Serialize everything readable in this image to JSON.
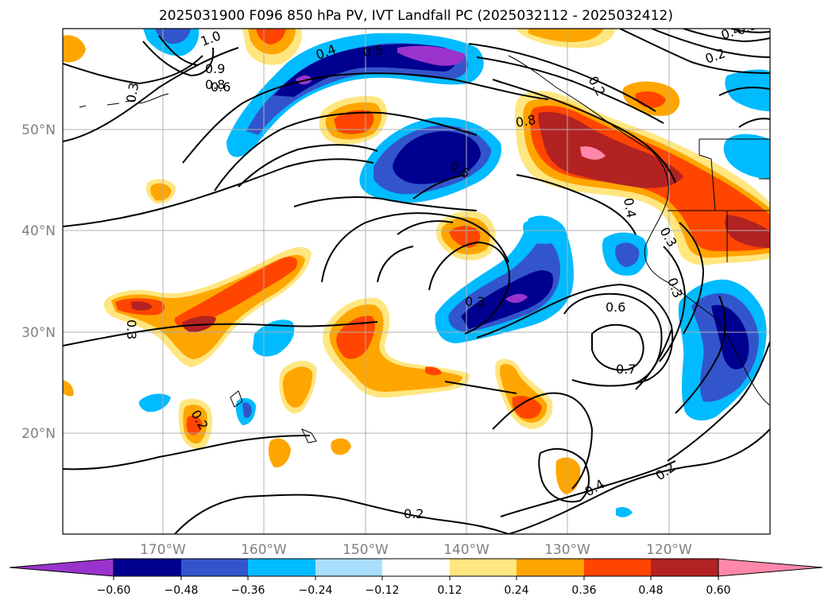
{
  "title": "2025031900 F096 850 hPa PV, IVT Landfall PC (2025032112 - 2025032412)",
  "lon_ticks": [
    "170°W",
    "160°W",
    "150°W",
    "140°W",
    "130°W",
    "120°W"
  ],
  "lat_ticks": [
    "50°N",
    "40°N",
    "30°N",
    "20°N"
  ],
  "colorbar": {
    "tick_labels": [
      "−0.60",
      "−0.48",
      "−0.36",
      "−0.24",
      "−0.12",
      "0.12",
      "0.24",
      "0.36",
      "0.48",
      "0.60"
    ],
    "colors": [
      "#9933cc",
      "#000090",
      "#3355cc",
      "#00bbff",
      "#aadeff",
      "#ffffff",
      "#ffe680",
      "#ffa500",
      "#ff4500",
      "#b22222",
      "#ff88aa"
    ]
  },
  "contour_labels": [
    "1.0",
    "0.9",
    "0.8",
    "0.6",
    "0.4",
    "0.5",
    "0.3",
    "0.2",
    "0.8",
    "0.6",
    "0.4",
    "0.3",
    "0.3",
    "0.6",
    "0.7",
    "0.4",
    "0.2",
    "0.2",
    "0.3",
    "0.2",
    "0.3",
    "0.4",
    "0.2",
    "0.5"
  ]
}
